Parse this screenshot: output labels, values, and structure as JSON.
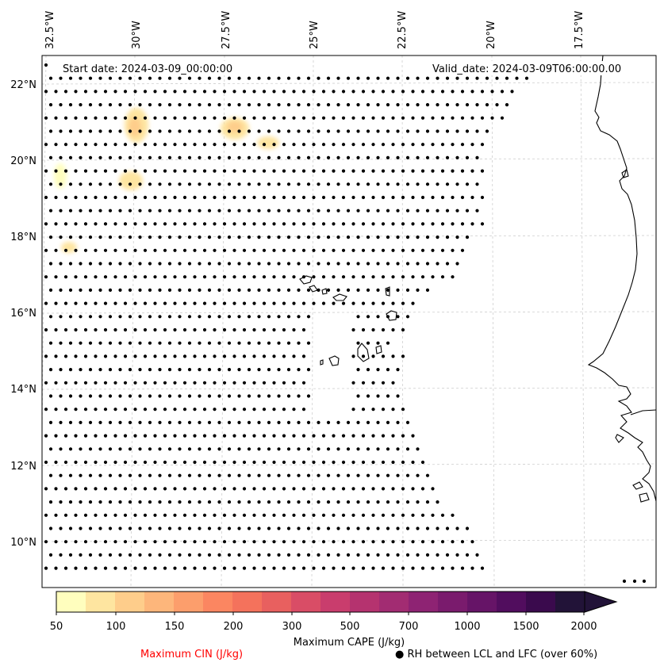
{
  "map": {
    "start_date": "Start date: 2024-03-09_00:00:00",
    "valid_date": "Valid_date: 2024-03-09T06:00:00.00",
    "lon_labels": [
      "32.5°W",
      "30°W",
      "27.5°W",
      "25°W",
      "22.5°W",
      "20°W",
      "17.5°W"
    ],
    "lat_labels": [
      "22°N",
      "20°N",
      "18°N",
      "16°N",
      "14°N",
      "12°N",
      "10°N"
    ]
  },
  "colorbar": {
    "label": "Maximum CAPE (J/kg)",
    "ticks": [
      "50",
      "100",
      "150",
      "200",
      "300",
      "500",
      "700",
      "1000",
      "1500",
      "2000"
    ],
    "colors": [
      "#fffebe",
      "#fee5a0",
      "#fecd8b",
      "#fdb67b",
      "#fc9e6c",
      "#fb8661",
      "#f4725c",
      "#e8605f",
      "#d94d66",
      "#c93d6d",
      "#b5336f",
      "#a22c72",
      "#8e2373",
      "#7a1b6d",
      "#661467",
      "#510d5e",
      "#3a0a4d",
      "#221338"
    ]
  },
  "legend": {
    "cin_label": "Maximum CIN (J/kg)",
    "cin_color": "#ff0000",
    "rh_label": "● RH between LCL and LFC (over 60%)"
  }
}
